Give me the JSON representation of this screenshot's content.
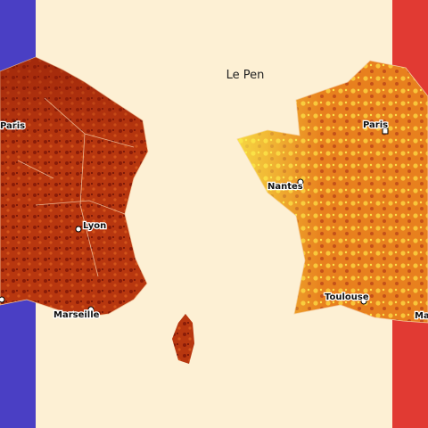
{
  "title": "Le Pen",
  "left_map": {
    "cities": [
      "Paris",
      "Lyon",
      "Marseille"
    ]
  },
  "right_map": {
    "cities": [
      "Paris",
      "Nantes",
      "Toulouse",
      "Ma"
    ]
  }
}
